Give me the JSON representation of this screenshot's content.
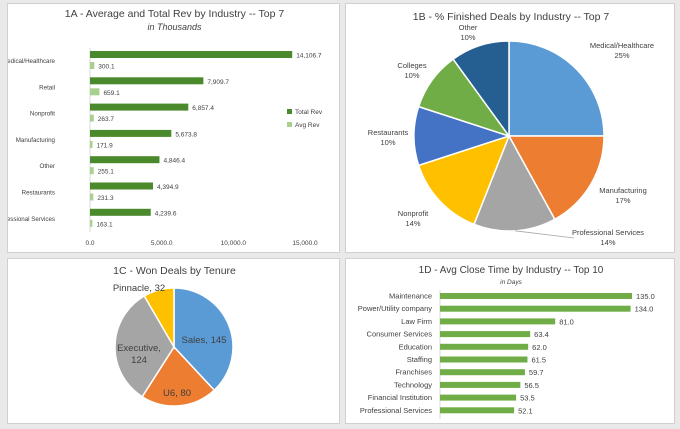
{
  "chart_data": [
    {
      "id": "1A",
      "type": "bar",
      "orientation": "horizontal",
      "title": "1A - Average and Total Rev by Industry -- Top 7",
      "subtitle": "in Thousands",
      "categories": [
        "Medical/Healthcare",
        "Retail",
        "Nonprofit",
        "Manufacturing",
        "Other",
        "Restaurants",
        "Professional Services"
      ],
      "series": [
        {
          "name": "Total Rev",
          "values": [
            14106.7,
            7909.7,
            6857.4,
            5673.8,
            4846.4,
            4394.9,
            4239.6
          ],
          "labels": [
            "14,106.7",
            "7,909.7",
            "6,857.4",
            "5,673.8",
            "4,846.4",
            "4,394.9",
            "4,239.6"
          ]
        },
        {
          "name": "Avg Rev",
          "values": [
            300.1,
            659.1,
            263.7,
            171.9,
            255.1,
            231.3,
            163.1
          ],
          "labels": [
            "300.1",
            "659.1",
            "263.7",
            "171.9",
            "255.1",
            "231.3",
            "163.1"
          ]
        }
      ],
      "xlim": [
        0,
        15000
      ],
      "xticks": [
        0,
        5000,
        10000,
        15000
      ],
      "xtick_labels": [
        "0.0",
        "5,000.0",
        "10,000.0",
        "15,000.0"
      ],
      "colors": [
        "#4a8a2c",
        "#a9d08e"
      ],
      "legend": "right"
    },
    {
      "id": "1B",
      "type": "pie",
      "title": "1B - % Finished Deals by Industry -- Top 7",
      "slices": [
        {
          "label": "Medical/Healthcare",
          "value": 25,
          "pct": "25%",
          "color": "#5b9bd5"
        },
        {
          "label": "Manufacturing",
          "value": 17,
          "pct": "17%",
          "color": "#ed7d31"
        },
        {
          "label": "Professional Services",
          "value": 14,
          "pct": "14%",
          "color": "#a5a5a5"
        },
        {
          "label": "Nonprofit",
          "value": 14,
          "pct": "14%",
          "color": "#ffc000"
        },
        {
          "label": "Restaurants",
          "value": 10,
          "pct": "10%",
          "color": "#4472c4"
        },
        {
          "label": "Colleges",
          "value": 10,
          "pct": "10%",
          "color": "#70ad47"
        },
        {
          "label": "Other",
          "value": 10,
          "pct": "10%",
          "color": "#255e91"
        }
      ]
    },
    {
      "id": "1C",
      "type": "pie",
      "title": "1C - Won Deals by Tenure",
      "slices": [
        {
          "label": "Sales",
          "value": 145,
          "text": "Sales, 145",
          "color": "#5b9bd5"
        },
        {
          "label": "U6",
          "value": 80,
          "text": "U6, 80",
          "color": "#ed7d31"
        },
        {
          "label": "Executive",
          "value": 124,
          "text": "Executive, 124",
          "color": "#a5a5a5"
        },
        {
          "label": "Pinnacle",
          "value": 32,
          "text": "Pinnacle, 32",
          "color": "#ffc000"
        }
      ]
    },
    {
      "id": "1D",
      "type": "bar",
      "orientation": "horizontal",
      "title": "1D - Avg Close Time by Industry -- Top 10",
      "subtitle": "in Days",
      "categories": [
        "Maintenance",
        "Power/Utility company",
        "Law Firm",
        "Consumer Services",
        "Education",
        "Staffing",
        "Franchises",
        "Technology",
        "Financial Institution",
        "Professional Services"
      ],
      "values": [
        135.0,
        134.0,
        81.0,
        63.4,
        62.0,
        61.5,
        59.7,
        56.5,
        53.5,
        52.1
      ],
      "labels": [
        "135.0",
        "134.0",
        "81.0",
        "63.4",
        "62.0",
        "61.5",
        "59.7",
        "56.5",
        "53.5",
        "52.1"
      ],
      "color": "#70ad47"
    }
  ]
}
